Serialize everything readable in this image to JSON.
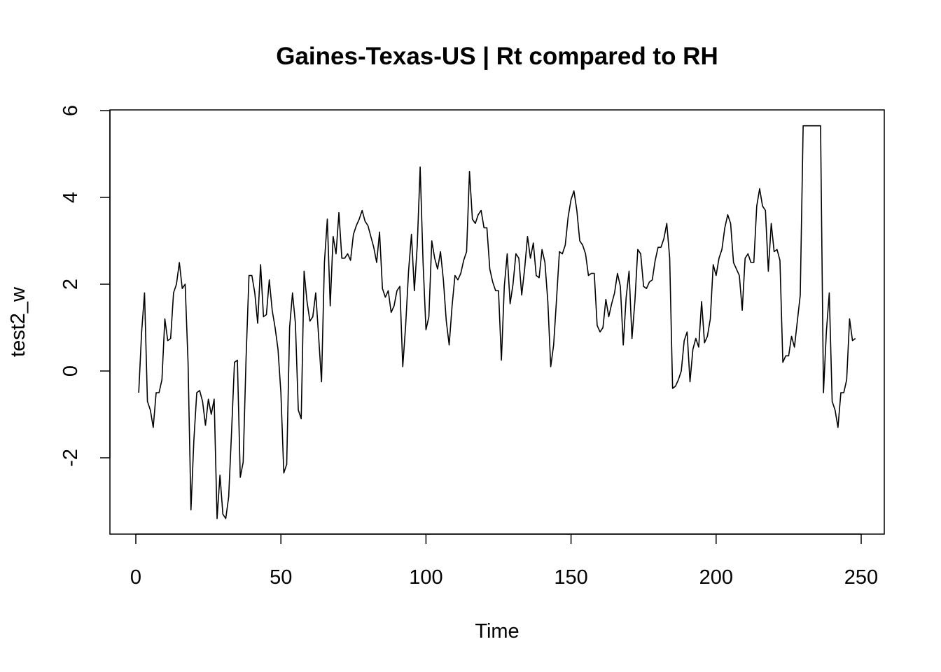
{
  "chart_data": {
    "type": "line",
    "title": "Gaines-Texas-US | Rt compared to RH",
    "xlabel": "Time",
    "ylabel": "test2_w",
    "xlim": [
      1,
      248
    ],
    "ylim": [
      -3.4,
      5.7
    ],
    "x_ticks": [
      0,
      50,
      100,
      150,
      200,
      250
    ],
    "y_ticks": [
      -2,
      0,
      2,
      4,
      6
    ],
    "x_tick_labels": [
      "0",
      "50",
      "100",
      "150",
      "200",
      "250"
    ],
    "y_tick_labels": [
      "-2",
      "0",
      "2",
      "4",
      "6"
    ],
    "grid": false,
    "legend": false,
    "series": [
      {
        "x_start": 1,
        "x_step": 1,
        "values": [
          -0.5,
          0.9,
          1.8,
          -0.7,
          -0.9,
          -1.3,
          -0.5,
          -0.5,
          -0.2,
          1.2,
          0.7,
          0.75,
          1.8,
          2.0,
          2.5,
          1.9,
          2.0,
          0.2,
          -3.2,
          -1.6,
          -0.5,
          -0.45,
          -0.7,
          -1.25,
          -0.65,
          -1.0,
          -0.65,
          -3.4,
          -2.4,
          -3.3,
          -3.4,
          -2.9,
          -1.4,
          0.2,
          0.25,
          -2.45,
          -2.1,
          0.3,
          2.2,
          2.2,
          1.8,
          1.1,
          2.45,
          1.25,
          1.3,
          2.1,
          1.4,
          1.0,
          0.5,
          -0.5,
          -2.35,
          -2.15,
          1.0,
          1.8,
          1.1,
          -0.9,
          -1.1,
          2.3,
          1.6,
          1.15,
          1.25,
          1.8,
          0.8,
          -0.25,
          2.5,
          3.5,
          1.5,
          3.1,
          2.7,
          3.65,
          2.6,
          2.6,
          2.7,
          2.55,
          3.15,
          3.35,
          3.5,
          3.7,
          3.45,
          3.35,
          3.1,
          2.85,
          2.5,
          3.2,
          1.9,
          1.7,
          1.85,
          1.35,
          1.5,
          1.85,
          1.95,
          0.1,
          1.05,
          2.3,
          3.15,
          1.85,
          2.9,
          4.7,
          2.5,
          0.95,
          1.25,
          3.0,
          2.6,
          2.35,
          2.75,
          2.1,
          1.15,
          0.6,
          1.5,
          2.2,
          2.1,
          2.25,
          2.55,
          2.75,
          4.6,
          3.5,
          3.4,
          3.6,
          3.7,
          3.3,
          3.3,
          2.35,
          2.05,
          1.85,
          1.85,
          0.25,
          1.95,
          2.7,
          1.55,
          2.0,
          2.7,
          2.6,
          1.75,
          2.35,
          3.1,
          2.6,
          2.95,
          2.2,
          2.15,
          2.8,
          2.5,
          1.6,
          0.1,
          0.6,
          1.65,
          2.75,
          2.7,
          2.9,
          3.55,
          3.95,
          4.15,
          3.7,
          3.0,
          2.9,
          2.7,
          2.2,
          2.25,
          2.25,
          1.05,
          0.9,
          1.0,
          1.65,
          1.25,
          1.55,
          1.8,
          2.25,
          1.95,
          0.6,
          1.7,
          2.3,
          0.75,
          1.6,
          2.8,
          2.7,
          1.95,
          1.9,
          2.05,
          2.1,
          2.55,
          2.85,
          2.85,
          3.05,
          3.4,
          2.6,
          -0.4,
          -0.35,
          -0.2,
          0.0,
          0.7,
          0.9,
          -0.25,
          0.5,
          0.75,
          0.55,
          1.6,
          0.65,
          0.8,
          1.2,
          2.45,
          2.2,
          2.6,
          2.8,
          3.3,
          3.6,
          3.4,
          2.5,
          2.35,
          2.2,
          1.4,
          2.6,
          2.7,
          2.5,
          2.5,
          3.8,
          4.2,
          3.8,
          3.7,
          2.3,
          3.4,
          2.75,
          2.8,
          2.55,
          0.2,
          0.35,
          0.35,
          0.8,
          0.55,
          1.15,
          1.75,
          5.65,
          5.65,
          5.65,
          5.65,
          5.65,
          5.65,
          5.65,
          -0.5,
          0.9,
          1.8,
          -0.7,
          -0.9,
          -1.3,
          -0.5,
          -0.5,
          -0.2,
          1.2,
          0.7,
          0.75
        ]
      }
    ]
  }
}
